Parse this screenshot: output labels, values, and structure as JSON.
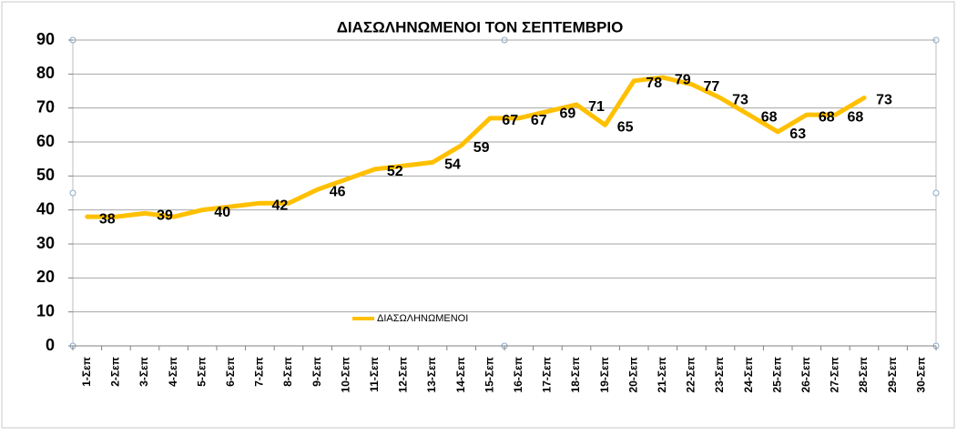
{
  "chart_data": {
    "type": "line",
    "title": "ΔΙΑΣΩΛΗΝΩΜΕΝΟΙ ΤΟΝ ΣΕΠΤΕΜΒΡΙΟ",
    "categories": [
      "1-Σεπ",
      "2-Σεπ",
      "3-Σεπ",
      "4-Σεπ",
      "5-Σεπ",
      "6-Σεπ",
      "7-Σεπ",
      "8-Σεπ",
      "9-Σεπ",
      "10-Σεπ",
      "11-Σεπ",
      "12-Σεπ",
      "13-Σεπ",
      "14-Σεπ",
      "15-Σεπ",
      "16-Σεπ",
      "17-Σεπ",
      "18-Σεπ",
      "19-Σεπ",
      "20-Σεπ",
      "21-Σεπ",
      "22-Σεπ",
      "23-Σεπ",
      "24-Σεπ",
      "25-Σεπ",
      "26-Σεπ",
      "27-Σεπ",
      "28-Σεπ",
      "29-Σεπ",
      "30-Σεπ"
    ],
    "series": [
      {
        "name": "ΔΙΑΣΩΛΗΝΩΜΕΝΟΙ",
        "color": "#FFC000",
        "values": [
          38,
          38,
          39,
          38,
          40,
          41,
          42,
          42,
          46,
          49,
          52,
          53,
          54,
          59,
          67,
          67,
          69,
          71,
          65,
          78,
          79,
          77,
          73,
          68,
          63,
          68,
          68,
          73,
          null,
          null
        ],
        "value_labels": [
          "38",
          null,
          "39",
          null,
          "40",
          null,
          "42",
          null,
          "46",
          null,
          "52",
          null,
          "54",
          "59",
          "67",
          "67",
          "69",
          "71",
          "65",
          "78",
          "79",
          "77",
          "73",
          "68",
          "63",
          "68",
          "68",
          "73",
          null,
          null
        ]
      }
    ],
    "ylim": [
      0,
      90
    ],
    "yticks": [
      0,
      10,
      20,
      30,
      40,
      50,
      60,
      70,
      80,
      90
    ],
    "grid": true,
    "legend": "inside"
  }
}
